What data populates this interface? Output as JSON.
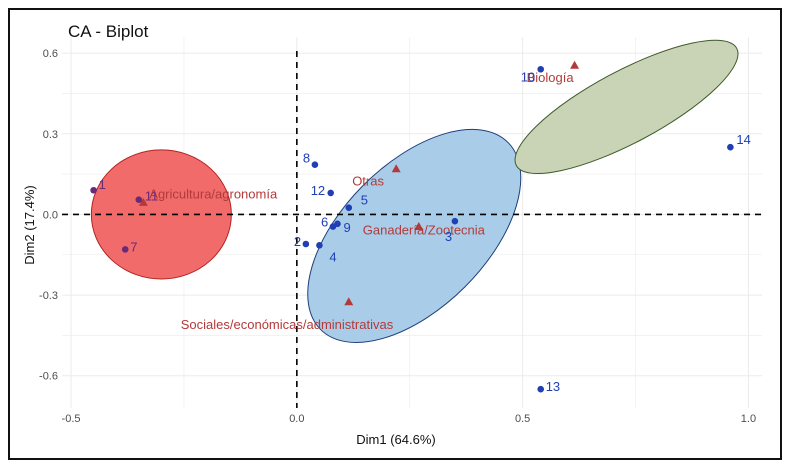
{
  "chart_data": {
    "type": "scatter",
    "title": "CA - Biplot",
    "xlabel": "Dim1 (64.6%)",
    "ylabel": "Dim2 (17.4%)",
    "xlim": [
      -0.52,
      1.03
    ],
    "ylim": [
      -0.72,
      0.66
    ],
    "xticks": [
      {
        "value": -0.5,
        "label": "-0.5"
      },
      {
        "value": 0.0,
        "label": "0.0"
      },
      {
        "value": 0.5,
        "label": "0.5"
      },
      {
        "value": 1.0,
        "label": "1.0"
      }
    ],
    "yticks": [
      {
        "value": 0.6,
        "label": "0.6"
      },
      {
        "value": 0.3,
        "label": "0.3"
      },
      {
        "value": 0.0,
        "label": "0.0"
      },
      {
        "value": -0.3,
        "label": "-0.3"
      },
      {
        "value": -0.6,
        "label": "-0.6"
      }
    ],
    "grid": true,
    "reference_lines": {
      "x": 0,
      "y": 0
    },
    "ellipses": [
      {
        "name": "red-cluster",
        "cx": -0.3,
        "cy": 0.0,
        "rx": 0.155,
        "ry": 0.24,
        "angle": 0,
        "fill": "#f26b6b",
        "stroke": "#b22222"
      },
      {
        "name": "blue-cluster",
        "cx": 0.26,
        "cy": -0.08,
        "rx": 0.35,
        "ry": 0.19,
        "angle": -45,
        "fill": "#a9cde8",
        "stroke": "#1f3f7a"
      },
      {
        "name": "green-cluster",
        "cx": 0.73,
        "cy": 0.4,
        "rx": 0.33,
        "ry": 0.095,
        "angle": -28,
        "fill": "#c9d4b6",
        "stroke": "#3f5a2a"
      }
    ],
    "row_points": [
      {
        "label": "1",
        "x": -0.45,
        "y": 0.09,
        "color": "#6a2a7a"
      },
      {
        "label": "11",
        "x": -0.35,
        "y": 0.055,
        "color": "#6a2a7a"
      },
      {
        "label": "7",
        "x": -0.38,
        "y": -0.13,
        "color": "#6a2a7a"
      },
      {
        "label": "8",
        "x": 0.04,
        "y": 0.185,
        "color": "#1f3fb3"
      },
      {
        "label": "12",
        "x": 0.075,
        "y": 0.08,
        "color": "#1f3fb3"
      },
      {
        "label": "5",
        "x": 0.115,
        "y": 0.025,
        "color": "#1f3fb3"
      },
      {
        "label": "9",
        "x": 0.09,
        "y": -0.035,
        "color": "#1f3fb3"
      },
      {
        "label": "6",
        "x": 0.08,
        "y": -0.045,
        "color": "#1f3fb3"
      },
      {
        "label": "2",
        "x": 0.02,
        "y": -0.11,
        "color": "#1f3fb3"
      },
      {
        "label": "4",
        "x": 0.05,
        "y": -0.115,
        "color": "#1f3fb3"
      },
      {
        "label": "3",
        "x": 0.35,
        "y": -0.025,
        "color": "#1f3fb3"
      },
      {
        "label": "13",
        "x": 0.54,
        "y": -0.65,
        "color": "#1f3fb3"
      },
      {
        "label": "10",
        "x": 0.54,
        "y": 0.54,
        "color": "#1f3fb3"
      },
      {
        "label": "14",
        "x": 0.96,
        "y": 0.25,
        "color": "#1f3fb3"
      }
    ],
    "column_points": [
      {
        "label": "Agricultura/agronomía",
        "x": -0.34,
        "y": 0.045
      },
      {
        "label": "Otras",
        "x": 0.22,
        "y": 0.17
      },
      {
        "label": "Ganadería/Zootecnia",
        "x": 0.27,
        "y": -0.045
      },
      {
        "label": "Sociales/económicas/administrativas",
        "x": 0.115,
        "y": -0.325
      },
      {
        "label": "Biología",
        "x": 0.615,
        "y": 0.555
      }
    ],
    "colors": {
      "row_text_red": "#6a2a7a",
      "row_text_blue": "#1f3fb3",
      "column": "#b33a3a",
      "grid": "#ebebeb",
      "axis_text": "#4d4d4d"
    }
  }
}
